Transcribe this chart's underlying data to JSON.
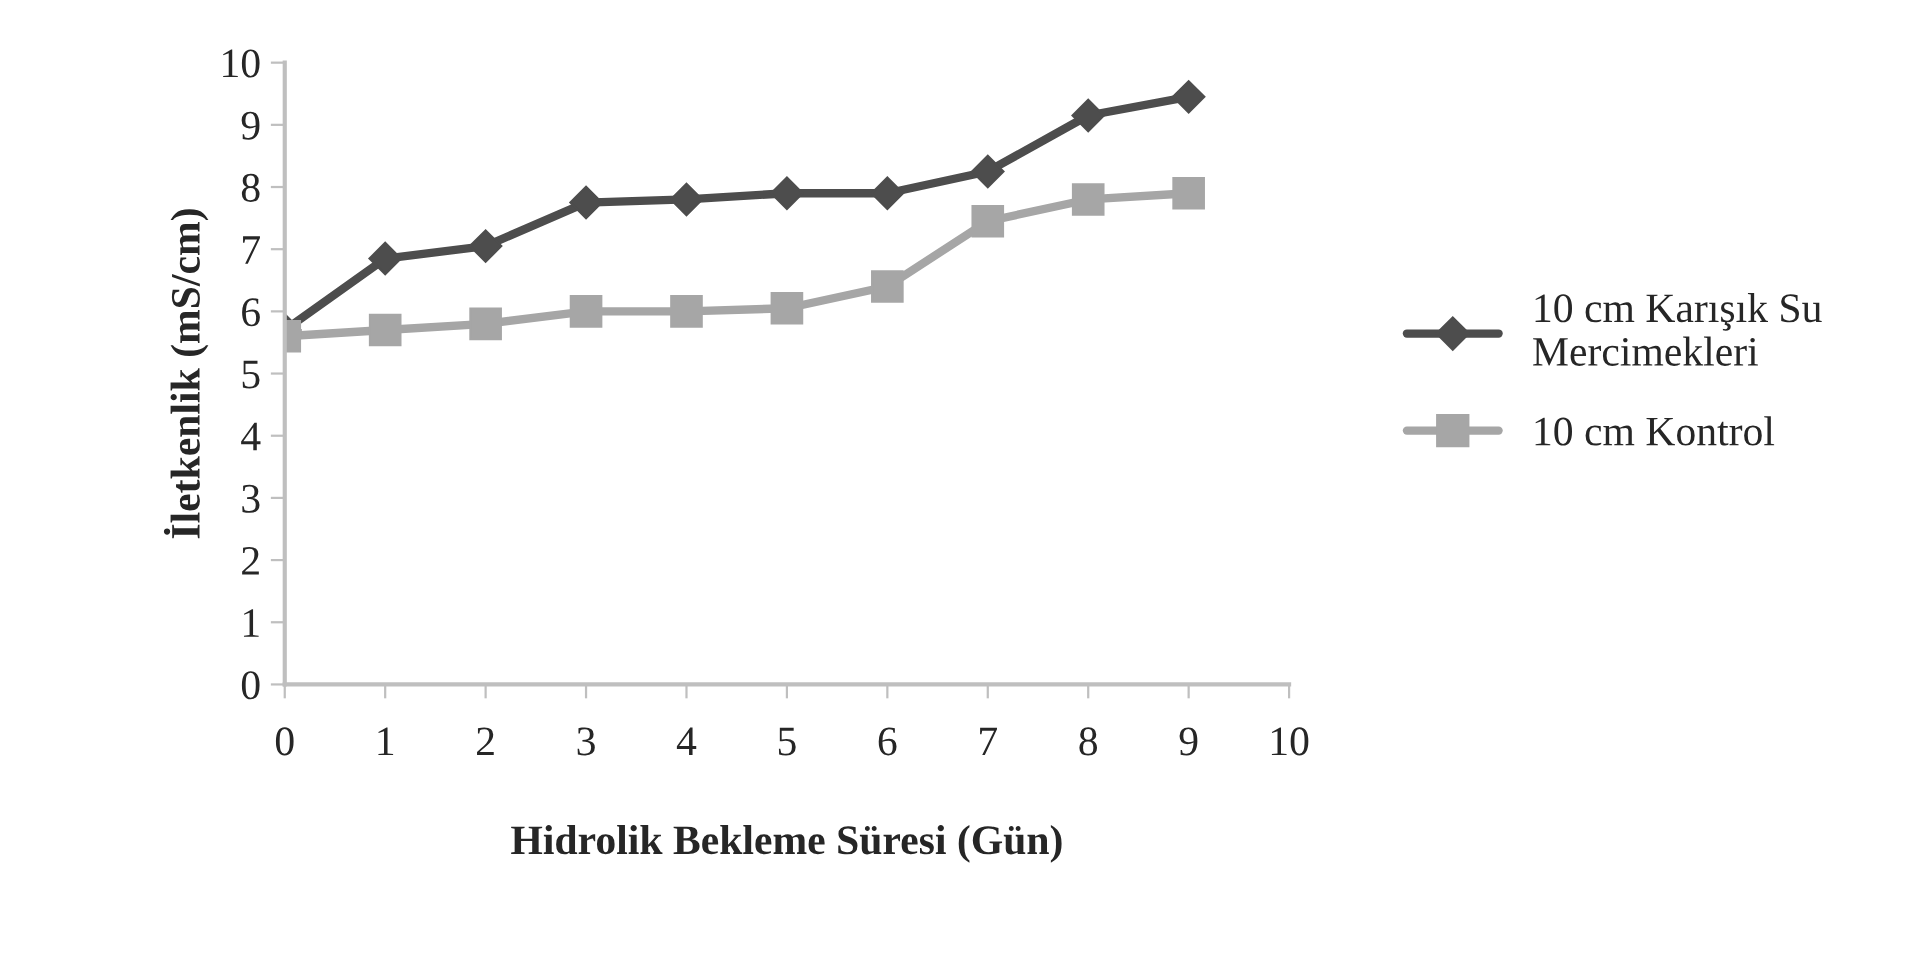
{
  "chart_data": {
    "type": "line",
    "xlabel": "Hidrolik Bekleme Süresi (Gün)",
    "ylabel": "İletkenlik (mS/cm)",
    "x": [
      0,
      1,
      2,
      3,
      4,
      5,
      6,
      7,
      8,
      9
    ],
    "series": [
      {
        "name": "10 cm Karışık Su Mercimekleri",
        "color": "#4d4d4d",
        "marker": "diamond",
        "values": [
          5.7,
          6.85,
          7.05,
          7.75,
          7.8,
          7.9,
          7.9,
          8.25,
          9.15,
          9.45
        ]
      },
      {
        "name": "10 cm Kontrol",
        "color": "#a6a6a6",
        "marker": "square",
        "values": [
          5.6,
          5.7,
          5.8,
          6.0,
          6.0,
          6.05,
          6.4,
          7.45,
          7.8,
          7.9
        ]
      }
    ],
    "xlim": [
      0,
      10
    ],
    "xticks": [
      0,
      1,
      2,
      3,
      4,
      5,
      6,
      7,
      8,
      9,
      10
    ],
    "ylim": [
      0,
      10
    ],
    "yticks": [
      0,
      1,
      2,
      3,
      4,
      5,
      6,
      7,
      8,
      9,
      10
    ],
    "grid": false,
    "legend": "right",
    "line_style": "solid"
  }
}
